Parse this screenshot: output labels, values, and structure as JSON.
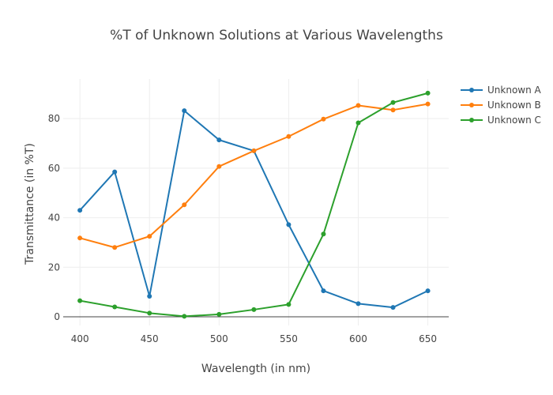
{
  "chart_data": {
    "type": "line",
    "title": "%T of Unknown Solutions at Various Wavelengths",
    "xlabel": "Wavelength (in nm)",
    "ylabel": "Transmittance (in %T)",
    "x": [
      400,
      425,
      450,
      475,
      500,
      525,
      550,
      575,
      600,
      625,
      650
    ],
    "xlim": [
      388,
      665
    ],
    "ylim": [
      -3.5,
      96
    ],
    "xticks": [
      400,
      450,
      500,
      550,
      600,
      650
    ],
    "yticks": [
      0,
      20,
      40,
      60,
      80
    ],
    "grid": true,
    "legend_position": "top-right",
    "series": [
      {
        "name": "Unknown A",
        "color": "#1f77b4",
        "values": [
          43,
          58.5,
          8.3,
          83.2,
          71.4,
          67,
          37.2,
          10.5,
          5.3,
          3.8,
          10.5
        ]
      },
      {
        "name": "Unknown B",
        "color": "#ff7f0e",
        "values": [
          31.8,
          28,
          32.5,
          45.2,
          60.7,
          67,
          72.8,
          79.8,
          85.3,
          83.5,
          85.9
        ]
      },
      {
        "name": "Unknown C",
        "color": "#2ca02c",
        "values": [
          6.5,
          4,
          1.5,
          0.2,
          1,
          2.9,
          5,
          33.4,
          78.3,
          86.5,
          90.3
        ]
      }
    ]
  }
}
